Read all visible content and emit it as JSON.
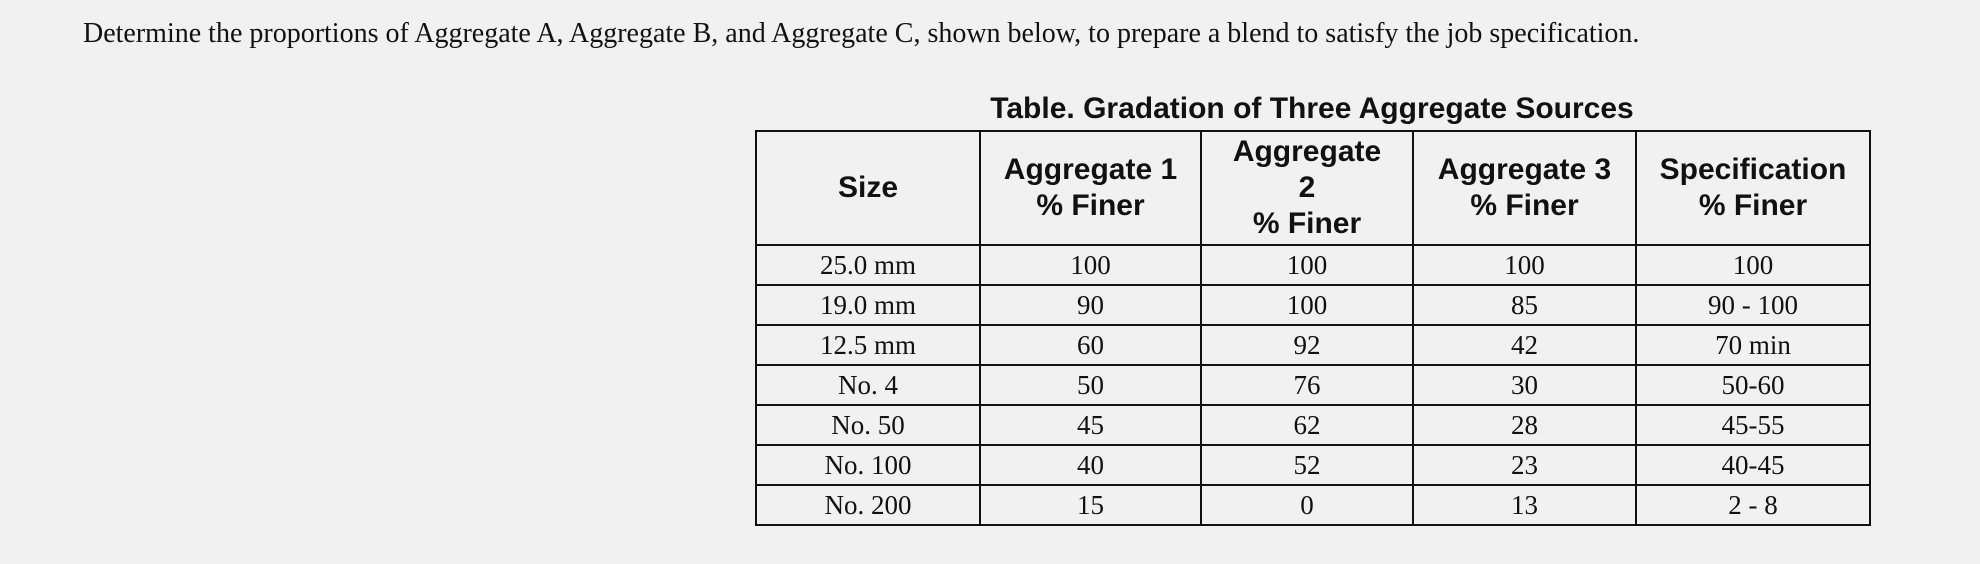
{
  "prompt": "Determine the proportions of Aggregate A, Aggregate B, and Aggregate C, shown below, to prepare a blend to satisfy the job specification.",
  "table": {
    "title": "Table. Gradation of Three Aggregate Sources",
    "header": [
      [
        "Size"
      ],
      [
        "Aggregate 1",
        "% Finer"
      ],
      [
        "Aggregate",
        "2",
        "% Finer"
      ],
      [
        "Aggregate 3",
        "% Finer"
      ],
      [
        "Specification",
        "% Finer"
      ]
    ],
    "rows": [
      [
        "25.0 mm",
        100,
        100,
        100,
        "100"
      ],
      [
        "19.0 mm",
        90,
        100,
        85,
        "90 - 100"
      ],
      [
        "12.5 mm",
        60,
        92,
        42,
        "70 min"
      ],
      [
        "No. 4",
        50,
        76,
        30,
        "50-60"
      ],
      [
        "No. 50",
        45,
        62,
        28,
        "45-55"
      ],
      [
        "No. 100",
        40,
        52,
        23,
        "40-45"
      ],
      [
        "No. 200",
        15,
        0,
        13,
        "2 - 8"
      ]
    ]
  }
}
